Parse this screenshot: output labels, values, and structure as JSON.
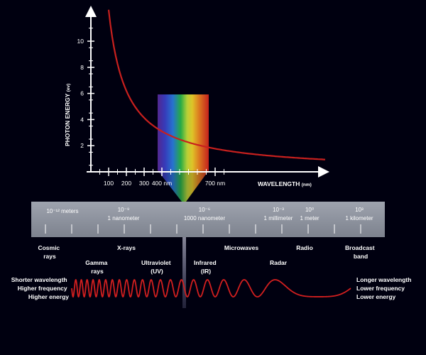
{
  "colors": {
    "background": "#000010",
    "curve": "#c8201e",
    "axis": "#ffffff",
    "band": "#8a8f9b",
    "wave": "#d21f1f"
  },
  "graph": {
    "y_axis_label": "PHOTON ENERGY",
    "y_axis_unit": "(ev)",
    "x_axis_label": "WAVELENGTH",
    "x_axis_unit": "(nm)",
    "y_ticks": [
      "2",
      "4",
      "6",
      "8",
      "10"
    ],
    "x_ticks": [
      "100",
      "200",
      "300",
      "400 nm",
      "700 nm"
    ]
  },
  "chart_data": {
    "type": "line",
    "title": "",
    "xlabel": "WAVELENGTH (nm)",
    "ylabel": "PHOTON ENERGY (ev)",
    "xlim": [
      0,
      1300
    ],
    "ylim": [
      0,
      12
    ],
    "series": [
      {
        "x": [
          100,
          150,
          200,
          300,
          400,
          500,
          600,
          700,
          800,
          1000,
          1200
        ],
        "values": [
          12.4,
          8.3,
          6.2,
          4.1,
          3.1,
          2.5,
          2.1,
          1.8,
          1.55,
          1.24,
          1.03
        ]
      }
    ]
  },
  "scale": {
    "labels": [
      {
        "exp": "10⁻¹² meters",
        "name": ""
      },
      {
        "exp": "10⁻⁹",
        "name": "1 nanometer"
      },
      {
        "exp": "10⁻⁶",
        "name": "1000 nanometer"
      },
      {
        "exp": "10⁻³",
        "name": "1 millimeter"
      },
      {
        "exp": "10⁰",
        "name": "1 meter"
      },
      {
        "exp": "10³",
        "name": "1 kilometer"
      }
    ]
  },
  "categories": {
    "cosmic": [
      "Cosmic",
      "rays"
    ],
    "xrays": [
      "X-rays"
    ],
    "gamma": [
      "Gamma",
      "rays"
    ],
    "uv": [
      "Ultraviolet",
      "(UV)"
    ],
    "ir": [
      "Infrared",
      "(IR)"
    ],
    "microwaves": [
      "Microwaves"
    ],
    "radar": [
      "Radar"
    ],
    "radio": [
      "Radio"
    ],
    "broadcast": [
      "Broadcast",
      "band"
    ]
  },
  "wave": {
    "left": [
      "Shorter wavelength",
      "Higher frequency",
      "Higher energy"
    ],
    "right": [
      "Longer wavelength",
      "Lower frequency",
      "Lower energy"
    ]
  }
}
